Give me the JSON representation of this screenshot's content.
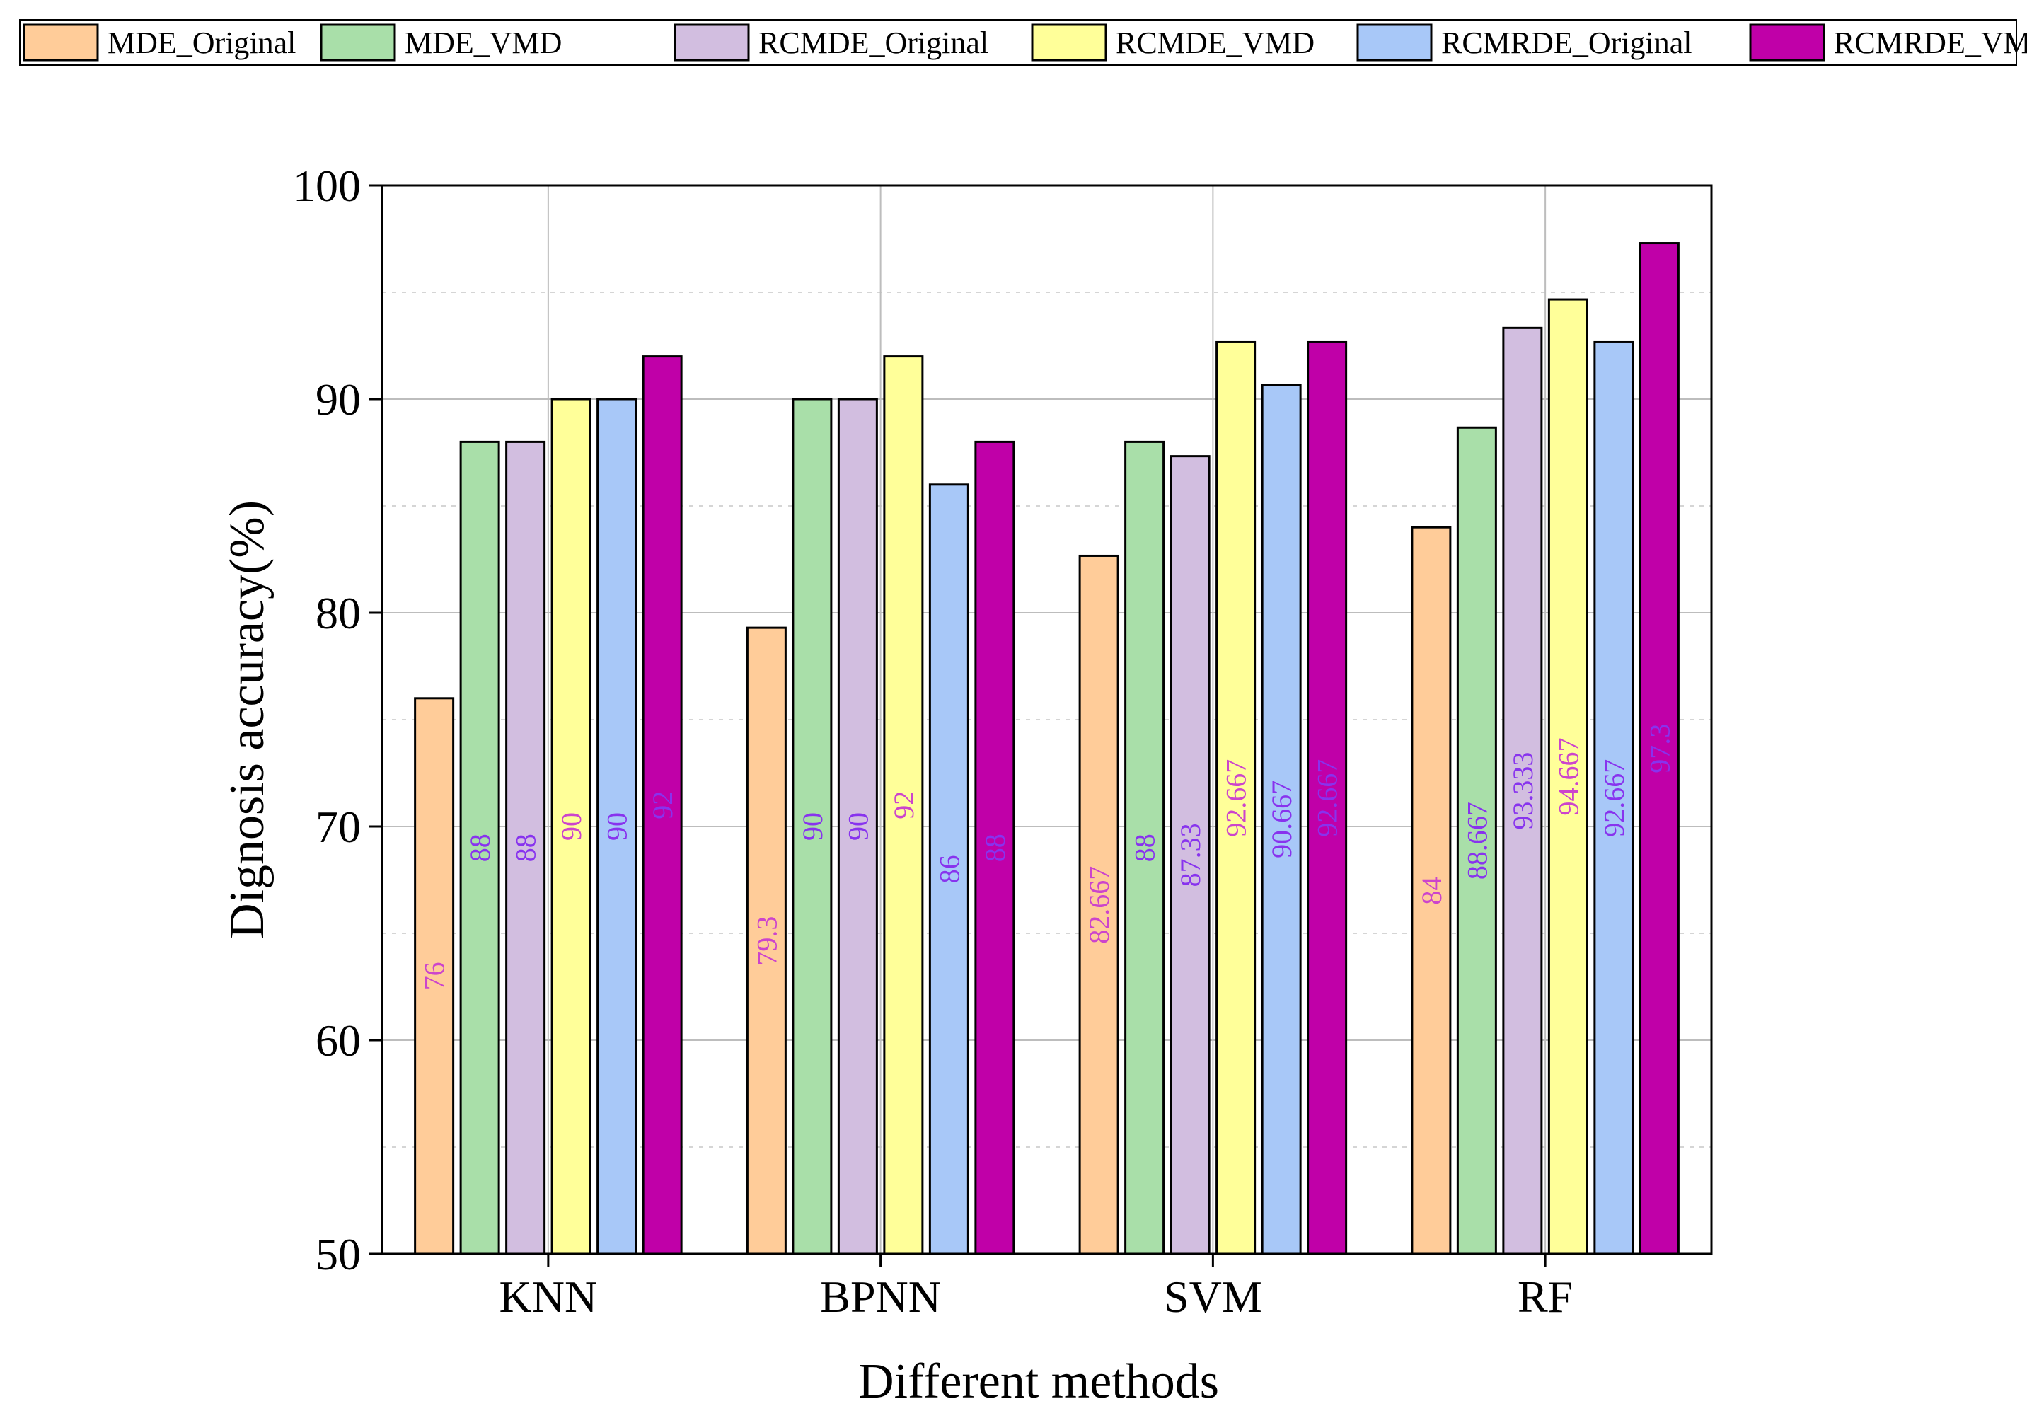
{
  "chart_data": {
    "type": "bar",
    "title": "",
    "xlabel": "Different methods",
    "ylabel": "Dignosis accuracy(%)",
    "ylim": [
      50,
      100
    ],
    "yticks": [
      50,
      60,
      70,
      80,
      90,
      100
    ],
    "grid": true,
    "legend_position": "top",
    "categories": [
      "KNN",
      "BPNN",
      "SVM",
      "RF"
    ],
    "series": [
      {
        "name": "MDE_Original",
        "color": "#FFCC99",
        "values": [
          76,
          79.3,
          82.667,
          84
        ],
        "labels": [
          "76",
          "79.3",
          "82.667",
          "84"
        ]
      },
      {
        "name": "MDE_VMD",
        "color": "#A9DFA9",
        "values": [
          88,
          90,
          88,
          88.667
        ],
        "labels": [
          "88",
          "90",
          "88",
          "88.667"
        ]
      },
      {
        "name": "RCMDE_Original",
        "color": "#D2BEE0",
        "values": [
          88,
          90,
          87.33,
          93.333
        ],
        "labels": [
          "88",
          "90",
          "87.33",
          "93.333"
        ]
      },
      {
        "name": "RCMDE_VMD",
        "color": "#FFFF99",
        "values": [
          90,
          92,
          92.667,
          94.667
        ],
        "labels": [
          "90",
          "92",
          "92.667",
          "94.667"
        ]
      },
      {
        "name": "RCMRDE_Original",
        "color": "#A8C8F8",
        "values": [
          90,
          86,
          90.667,
          92.667
        ],
        "labels": [
          "90",
          "86",
          "90.667",
          "92.667"
        ]
      },
      {
        "name": "RCMRDE_VMD",
        "color": "#C000A8",
        "values": [
          92,
          88,
          92.667,
          97.3
        ],
        "labels": [
          "92",
          "88",
          "92.667",
          "97.3"
        ]
      }
    ],
    "value_label_colors": {
      "MDE_Original": "#CC44CC",
      "RCMDE_VMD": "#CC44CC",
      "default": "#8833EE"
    }
  }
}
